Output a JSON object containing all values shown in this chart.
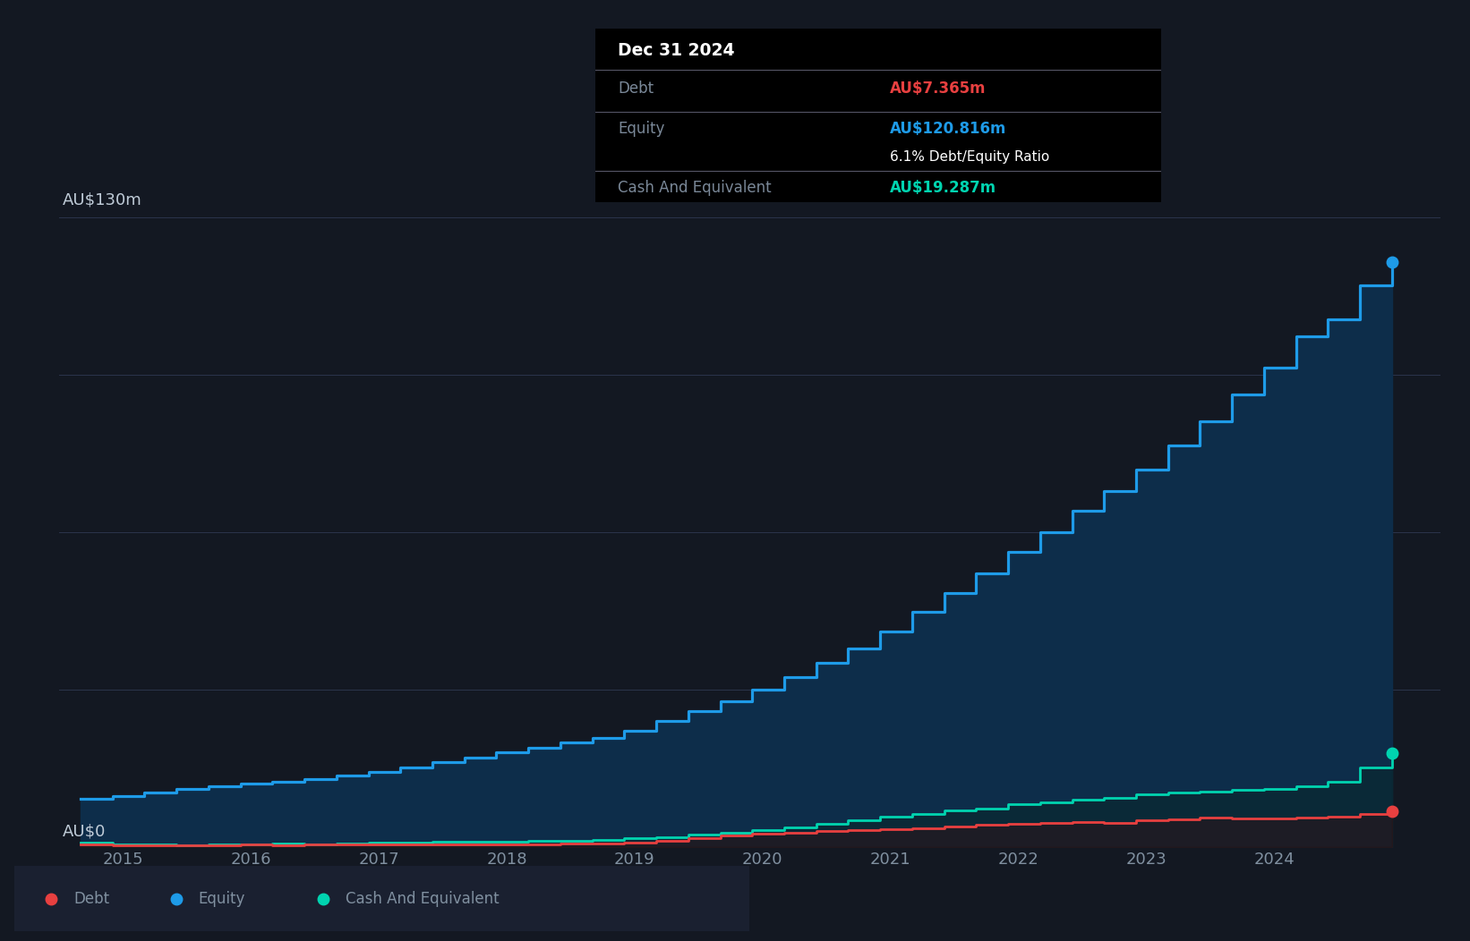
{
  "bg_color": "#131822",
  "plot_bg_color": "#131822",
  "grid_color": "#2e3750",
  "axis_label_color": "#8090a0",
  "equity_color": "#1e9be8",
  "debt_color": "#e84040",
  "cash_color": "#00d4b0",
  "ylabel_text": "AU$130m",
  "y0_text": "AU$0",
  "ylim": [
    0,
    140
  ],
  "xlim": [
    2014.5,
    2025.3
  ],
  "tooltip_date": "Dec 31 2024",
  "tooltip_debt_label": "Debt",
  "tooltip_debt_value": "AU$7.365m",
  "tooltip_equity_label": "Equity",
  "tooltip_equity_value": "AU$120.816m",
  "tooltip_ratio": "6.1% Debt/Equity Ratio",
  "tooltip_cash_label": "Cash And Equivalent",
  "tooltip_cash_value": "AU$19.287m",
  "equity_data": {
    "dates": [
      2014.67,
      2014.92,
      2015.17,
      2015.42,
      2015.67,
      2015.92,
      2016.17,
      2016.42,
      2016.67,
      2016.92,
      2017.17,
      2017.42,
      2017.67,
      2017.92,
      2018.17,
      2018.42,
      2018.67,
      2018.92,
      2019.17,
      2019.42,
      2019.67,
      2019.92,
      2020.17,
      2020.42,
      2020.67,
      2020.92,
      2021.17,
      2021.42,
      2021.67,
      2021.92,
      2022.17,
      2022.42,
      2022.67,
      2022.92,
      2023.17,
      2023.42,
      2023.67,
      2023.92,
      2024.17,
      2024.42,
      2024.67,
      2024.92
    ],
    "values": [
      10.0,
      10.5,
      11.2,
      12.0,
      12.5,
      13.0,
      13.5,
      14.0,
      14.8,
      15.5,
      16.5,
      17.5,
      18.5,
      19.5,
      20.5,
      21.5,
      22.5,
      24.0,
      26.0,
      28.0,
      30.0,
      32.5,
      35.0,
      38.0,
      41.0,
      44.5,
      48.5,
      52.5,
      56.5,
      61.0,
      65.0,
      69.5,
      73.5,
      78.0,
      83.0,
      88.0,
      93.5,
      99.0,
      105.5,
      109.0,
      116.0,
      120.816
    ]
  },
  "debt_data": {
    "dates": [
      2014.67,
      2014.92,
      2015.17,
      2015.42,
      2015.67,
      2015.92,
      2016.17,
      2016.42,
      2016.67,
      2016.92,
      2017.17,
      2017.42,
      2017.67,
      2017.92,
      2018.17,
      2018.42,
      2018.67,
      2018.92,
      2019.17,
      2019.42,
      2019.67,
      2019.92,
      2020.17,
      2020.42,
      2020.67,
      2020.92,
      2021.17,
      2021.42,
      2021.67,
      2021.92,
      2022.17,
      2022.42,
      2022.67,
      2022.92,
      2023.17,
      2023.42,
      2023.67,
      2023.92,
      2024.17,
      2024.42,
      2024.67,
      2024.92
    ],
    "values": [
      0.5,
      0.3,
      0.4,
      0.35,
      0.4,
      0.45,
      0.4,
      0.45,
      0.5,
      0.45,
      0.5,
      0.55,
      0.5,
      0.55,
      0.6,
      0.65,
      0.7,
      0.8,
      1.2,
      1.8,
      2.3,
      2.7,
      3.0,
      3.2,
      3.4,
      3.6,
      3.9,
      4.2,
      4.5,
      4.8,
      5.0,
      5.2,
      5.0,
      5.5,
      5.7,
      6.0,
      5.8,
      5.9,
      6.1,
      6.2,
      6.8,
      7.365
    ]
  },
  "cash_data": {
    "dates": [
      2014.67,
      2014.92,
      2015.17,
      2015.42,
      2015.67,
      2015.92,
      2016.17,
      2016.42,
      2016.67,
      2016.92,
      2017.17,
      2017.42,
      2017.67,
      2017.92,
      2018.17,
      2018.42,
      2018.67,
      2018.92,
      2019.17,
      2019.42,
      2019.67,
      2019.92,
      2020.17,
      2020.42,
      2020.67,
      2020.92,
      2021.17,
      2021.42,
      2021.67,
      2021.92,
      2022.17,
      2022.42,
      2022.67,
      2022.92,
      2023.17,
      2023.42,
      2023.67,
      2023.92,
      2024.17,
      2024.42,
      2024.67,
      2024.92
    ],
    "values": [
      0.8,
      0.6,
      0.5,
      0.4,
      0.5,
      0.6,
      0.7,
      0.6,
      0.7,
      0.8,
      0.9,
      1.0,
      1.0,
      1.1,
      1.2,
      1.3,
      1.5,
      1.8,
      2.0,
      2.5,
      3.0,
      3.5,
      4.0,
      4.8,
      5.5,
      6.2,
      6.8,
      7.5,
      8.0,
      8.8,
      9.2,
      9.8,
      10.2,
      10.8,
      11.2,
      11.5,
      11.8,
      12.0,
      12.5,
      13.5,
      16.5,
      19.287
    ]
  },
  "xticks": [
    2015,
    2016,
    2017,
    2018,
    2019,
    2020,
    2021,
    2022,
    2023,
    2024
  ],
  "xtick_labels": [
    "2015",
    "2016",
    "2017",
    "2018",
    "2019",
    "2020",
    "2021",
    "2022",
    "2023",
    "2024"
  ],
  "grid_y_vals": [
    0,
    32.5,
    65,
    97.5,
    130
  ]
}
